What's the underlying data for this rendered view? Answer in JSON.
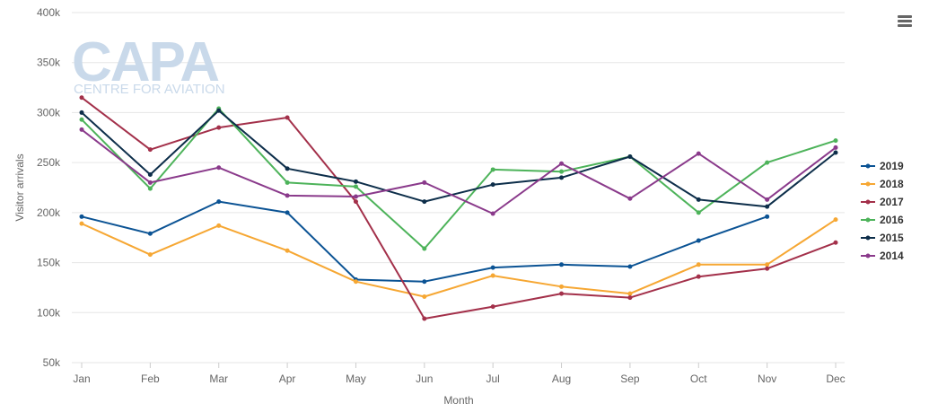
{
  "chart_data": {
    "type": "line",
    "title": "",
    "xlabel": "Month",
    "ylabel": "Visitor arrivals",
    "categories": [
      "Jan",
      "Feb",
      "Mar",
      "Apr",
      "May",
      "Jun",
      "Jul",
      "Aug",
      "Sep",
      "Oct",
      "Nov",
      "Dec"
    ],
    "ylim": [
      50000,
      400000
    ],
    "yticks": [
      50000,
      100000,
      150000,
      200000,
      250000,
      300000,
      350000,
      400000
    ],
    "ytick_labels": [
      "50k",
      "100k",
      "150k",
      "200k",
      "250k",
      "300k",
      "350k",
      "400k"
    ],
    "grid": true,
    "legend_position": "right",
    "series": [
      {
        "name": "2019",
        "color": "#0b5394",
        "values": [
          196000,
          179000,
          211000,
          200000,
          133000,
          131000,
          145000,
          148000,
          146000,
          172000,
          196000,
          null
        ]
      },
      {
        "name": "2018",
        "color": "#f6a733",
        "values": [
          189000,
          158000,
          187000,
          162000,
          131000,
          116000,
          137000,
          126000,
          119000,
          148000,
          148000,
          193000
        ]
      },
      {
        "name": "2017",
        "color": "#a3304a",
        "values": [
          315000,
          263000,
          285000,
          295000,
          211000,
          94000,
          106000,
          119000,
          115000,
          136000,
          144000,
          170000
        ]
      },
      {
        "name": "2016",
        "color": "#4db35a",
        "values": [
          293000,
          224000,
          304000,
          230000,
          226000,
          164000,
          243000,
          241000,
          256000,
          200000,
          250000,
          272000
        ]
      },
      {
        "name": "2015",
        "color": "#0d2e4a",
        "values": [
          300000,
          238000,
          302000,
          244000,
          231000,
          211000,
          228000,
          235000,
          256000,
          213000,
          206000,
          260000
        ]
      },
      {
        "name": "2014",
        "color": "#8a3a8b",
        "values": [
          283000,
          230000,
          245000,
          217000,
          216000,
          230000,
          199000,
          249000,
          214000,
          259000,
          213000,
          265000
        ]
      }
    ]
  },
  "watermark": {
    "brand": "CAPA",
    "tagline": "CENTRE FOR AVIATION"
  },
  "menu_icon": "hamburger-menu-icon"
}
